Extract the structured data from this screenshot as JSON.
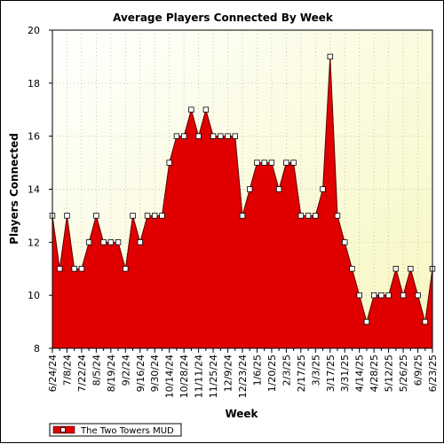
{
  "chart_data": {
    "type": "area",
    "title": "Average Players Connected By Week",
    "xlabel": "Week",
    "ylabel": "Players Connected",
    "ylim": [
      8,
      20
    ],
    "yticks": [
      8,
      10,
      12,
      14,
      16,
      18,
      20
    ],
    "grid": true,
    "legend_position": "bottom-left",
    "x_tick_labels": [
      "6/24/24",
      "7/8/24",
      "7/22/24",
      "8/5/24",
      "8/19/24",
      "9/2/24",
      "9/16/24",
      "9/30/24",
      "10/14/24",
      "10/28/24",
      "11/11/24",
      "11/25/24",
      "12/9/24",
      "12/23/24",
      "1/6/25",
      "1/20/25",
      "2/3/25",
      "2/17/25",
      "3/3/25",
      "3/17/25",
      "3/31/25",
      "4/14/25",
      "4/28/25",
      "5/12/25",
      "5/26/25",
      "6/9/25",
      "6/23/25"
    ],
    "series": [
      {
        "name": "The Two Towers MUD",
        "color": "#e00000",
        "values": [
          13,
          11,
          13,
          11,
          11,
          12,
          13,
          12,
          12,
          12,
          11,
          13,
          12,
          13,
          13,
          13,
          15,
          16,
          16,
          17,
          16,
          17,
          16,
          16,
          16,
          16,
          13,
          14,
          15,
          15,
          15,
          14,
          15,
          15,
          13,
          13,
          13,
          14,
          19,
          13,
          12,
          11,
          10,
          9,
          10,
          10,
          10,
          11,
          10,
          11,
          10,
          9,
          11
        ]
      }
    ]
  }
}
